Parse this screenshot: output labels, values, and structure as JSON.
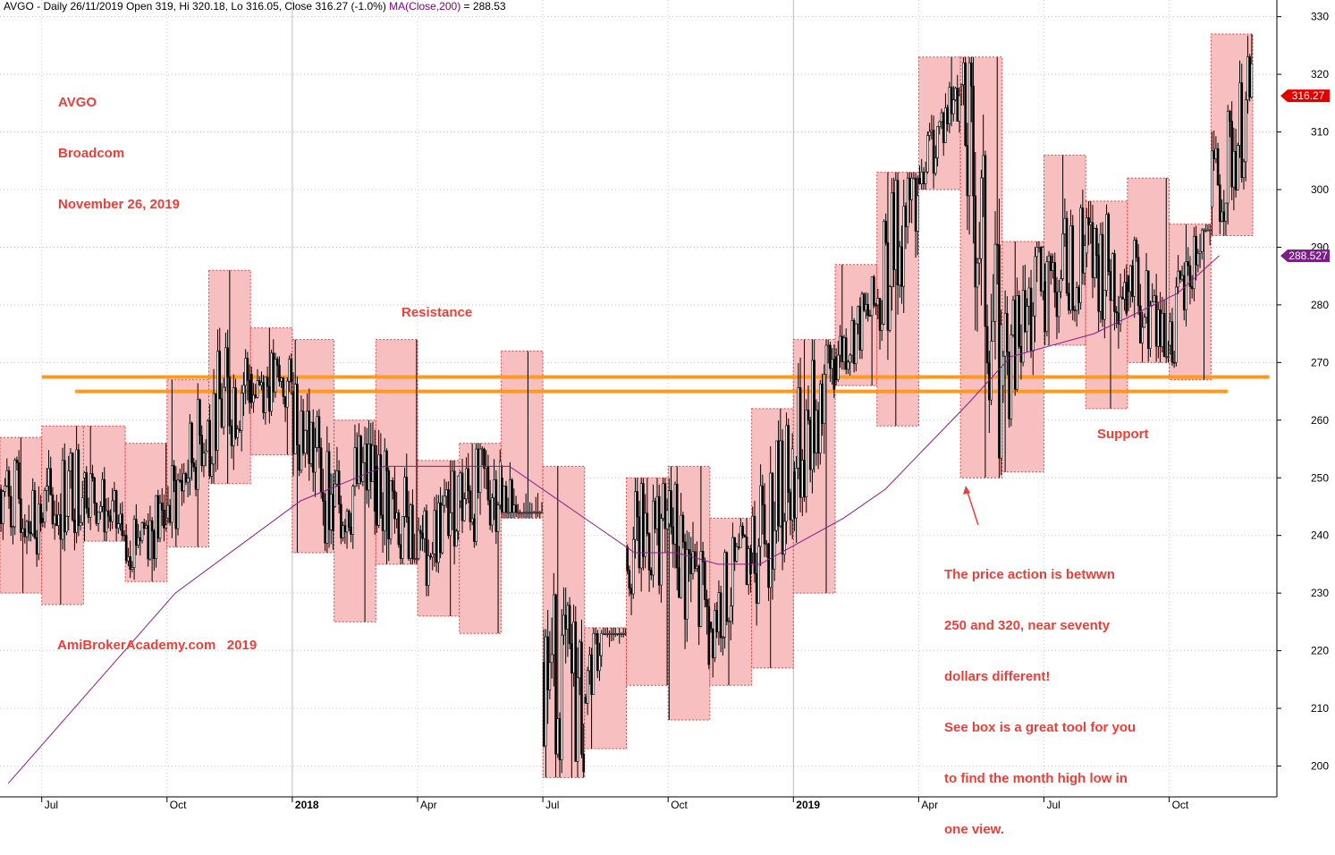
{
  "header": {
    "ticker_line": "AVGO - Daily 26/11/2019 Open 319, Hi 320.18, Lo 316.05, Close 316.27 (-1.0%)",
    "ma_label": "MA(Close,200)",
    "ma_value_text": "= 288.53"
  },
  "annotations": {
    "title_lines": [
      "AVGO",
      "Broadcom",
      "November 26, 2019"
    ],
    "resistance": "Resistance",
    "support": "Support",
    "watermark": "AmiBrokerAcademy.com   2019",
    "comment_lines": [
      "The price action is betwwn",
      "250 and 320, near seventy",
      "dollars different!",
      "See box is a great tool for you",
      "to find the month high low in",
      "one view."
    ]
  },
  "colors": {
    "box_fill": "#f7bcbc",
    "box_border": "#d24040",
    "candle": "#000000",
    "ma_line": "#8b1a8b",
    "hline": "#ff9a1f",
    "grid": "#c8c8c8",
    "annotation": "#e8403a",
    "price_tag": "#e00000",
    "ma_tag": "#7a1f86"
  },
  "chart_data": {
    "type": "candlestick",
    "title": "AVGO - Daily 26/11/2019",
    "y_axis": {
      "min": 194,
      "max": 334,
      "ticks": [
        200,
        210,
        220,
        230,
        240,
        250,
        260,
        270,
        280,
        290,
        300,
        310,
        320,
        330
      ],
      "side": "right"
    },
    "x_axis_labels": [
      "Jul",
      "Oct",
      "2018",
      "Apr",
      "Jul",
      "Oct",
      "2019",
      "Apr",
      "Jul",
      "Oct"
    ],
    "x_axis_label_months": [
      1,
      4,
      7,
      10,
      13,
      16,
      19,
      22,
      25,
      28
    ],
    "bold_labels": [
      "2018",
      "2019"
    ],
    "months": [
      "Jun 2017",
      "Jul 2017",
      "Aug 2017",
      "Sep 2017",
      "Oct 2017",
      "Nov 2017",
      "Dec 2017",
      "Jan 2018",
      "Feb 2018",
      "Mar 2018",
      "Apr 2018",
      "May 2018",
      "Jun 2018",
      "Jul 2018",
      "Aug 2018",
      "Sep 2018",
      "Oct 2018",
      "Nov 2018",
      "Dec 2018",
      "Jan 2019",
      "Feb 2019",
      "Mar 2019",
      "Apr 2019",
      "May 2019",
      "Jun 2019",
      "Jul 2019",
      "Aug 2019",
      "Sep 2019",
      "Oct 2019",
      "Nov 2019"
    ],
    "monthly_high": [
      257,
      259,
      259,
      256,
      267,
      286,
      276,
      274,
      260,
      274,
      253,
      256,
      272,
      252,
      224,
      250,
      252,
      243,
      262,
      274,
      287,
      303,
      323,
      323,
      291,
      306,
      298,
      302,
      294,
      327
    ],
    "monthly_low": [
      230,
      228,
      239,
      232,
      238,
      249,
      254,
      237,
      225,
      235,
      226,
      223,
      243,
      198,
      203,
      214,
      208,
      214,
      217,
      230,
      266,
      259,
      300,
      250,
      251,
      273,
      262,
      270,
      267,
      292
    ],
    "monthly_open": [
      248,
      243,
      250,
      240,
      243,
      260,
      268,
      265,
      245,
      252,
      236,
      246,
      250,
      218,
      212,
      238,
      242,
      225,
      237,
      251,
      271,
      280,
      302,
      318,
      266,
      284,
      289,
      285,
      273,
      297
    ],
    "monthly_close": [
      243,
      250,
      240,
      243,
      260,
      268,
      265,
      245,
      252,
      236,
      246,
      250,
      218,
      212,
      238,
      242,
      225,
      237,
      251,
      271,
      280,
      302,
      318,
      266,
      284,
      289,
      285,
      273,
      297,
      316
    ],
    "moving_average_200": {
      "name": "MA(Close,200)",
      "points": [
        [
          0,
          197
        ],
        [
          4,
          230
        ],
        [
          7,
          246
        ],
        [
          9,
          252
        ],
        [
          12,
          252
        ],
        [
          15,
          237
        ],
        [
          16,
          237
        ],
        [
          17,
          235
        ],
        [
          18,
          235
        ],
        [
          20,
          243
        ],
        [
          21,
          248
        ],
        [
          23,
          263
        ],
        [
          24,
          271
        ],
        [
          26,
          275
        ],
        [
          28,
          282
        ],
        [
          29,
          288.53
        ]
      ]
    },
    "horizontal_lines": [
      {
        "value": 267.5,
        "from_month": 1,
        "to_month": 30.4
      },
      {
        "value": 265,
        "from_month": 1.8,
        "to_month": 29.4
      }
    ],
    "last_close": {
      "value": 316.27,
      "label": "316.27"
    },
    "ma_last": {
      "value": 288.527,
      "label": "288.527"
    }
  }
}
